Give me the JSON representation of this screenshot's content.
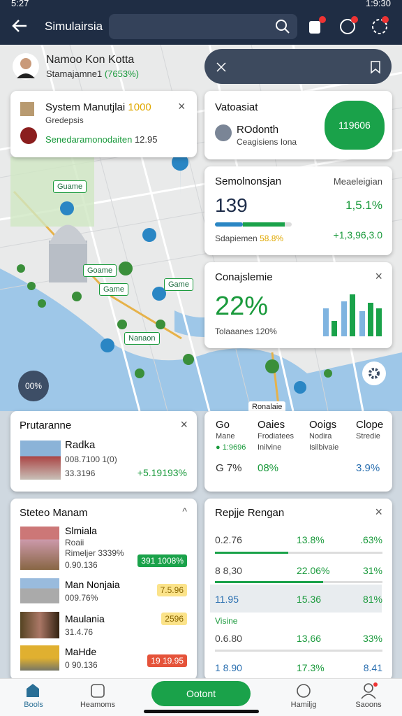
{
  "status_bar": {
    "time": "5:27",
    "right": "1:9:30"
  },
  "top_bar": {
    "title": "Simulairsia"
  },
  "profile": {
    "name": "Namoo Kon Kotta",
    "subtitle": "Stamajamne1",
    "percent": "(7653%)"
  },
  "system_card": {
    "title": "System Manutjlai",
    "badge": "1000",
    "subtitle": "Gredepsis",
    "detail": "Senedaramonodaiten",
    "value": "12.95"
  },
  "vatoasiat_card": {
    "title": "Vatoasiat",
    "name": "ROdonth",
    "caption": "Ceagisiens Iona",
    "badge": "119606"
  },
  "stats_card": {
    "title": "Semolnonsjan",
    "label": "Meaeleigian",
    "value": "139",
    "change": "1,5.1%",
    "caption": "Sdapiemen",
    "caption_value": "58.8%",
    "amount": "+1,3,96,3.0"
  },
  "percent_card": {
    "title": "Conajslemie",
    "value": "22%",
    "caption": "Tolaaanes",
    "caption_value": "120%"
  },
  "map": {
    "labels": [
      "Guame",
      "Goame",
      "Game",
      "Game",
      "Nanaon",
      "Ronalaie"
    ],
    "zoom": "00%"
  },
  "prutaranne_card": {
    "title": "Prutaranne",
    "name": "Radka",
    "line1": "008.7100 1(0)",
    "line2": "33.3196",
    "value": "+5.19193%"
  },
  "columns_card": {
    "columns": [
      [
        "Go",
        "Mane",
        "1:9696",
        "G 7%"
      ],
      [
        "Oaies",
        "Frodiatees",
        "Inilvine",
        "08%"
      ],
      [
        "Ooigs",
        "Nodira",
        "Isilbivaie"
      ],
      [
        "Clope",
        "Stredie",
        "3.9%"
      ]
    ]
  },
  "list_card": {
    "title": "Steteo Manam",
    "items": [
      {
        "name": "Slmiala",
        "sub": "Roaii",
        "line1": "Rimeljer 3339%",
        "line2": "0.90.136",
        "badge": "391 1008%"
      },
      {
        "name": "Man Nonjaia",
        "line1": "009.76%",
        "badge": "7.5.96"
      },
      {
        "name": "Maulania",
        "line1": "31.4.76",
        "badge": "2596"
      },
      {
        "name": "MaHde",
        "line1": "0 90.136",
        "badge": "19 19.95"
      }
    ]
  },
  "rank_card": {
    "title": "Repjje Rengan",
    "rows": [
      [
        "0.2.76",
        "13.8%",
        ".63%"
      ],
      [
        "8 8,30",
        "22.06%",
        "31%"
      ],
      [
        "11.95",
        "15.36",
        "81%"
      ],
      [
        "0.6.80",
        "13,66",
        "33%"
      ],
      [
        "1 8.90",
        "17.3%",
        "8.41"
      ]
    ],
    "section": "Visine"
  },
  "bottom_nav": {
    "items": [
      "Bools",
      "Heamoms",
      "Hamiljg",
      "Saoons"
    ],
    "button": "Ootont"
  }
}
